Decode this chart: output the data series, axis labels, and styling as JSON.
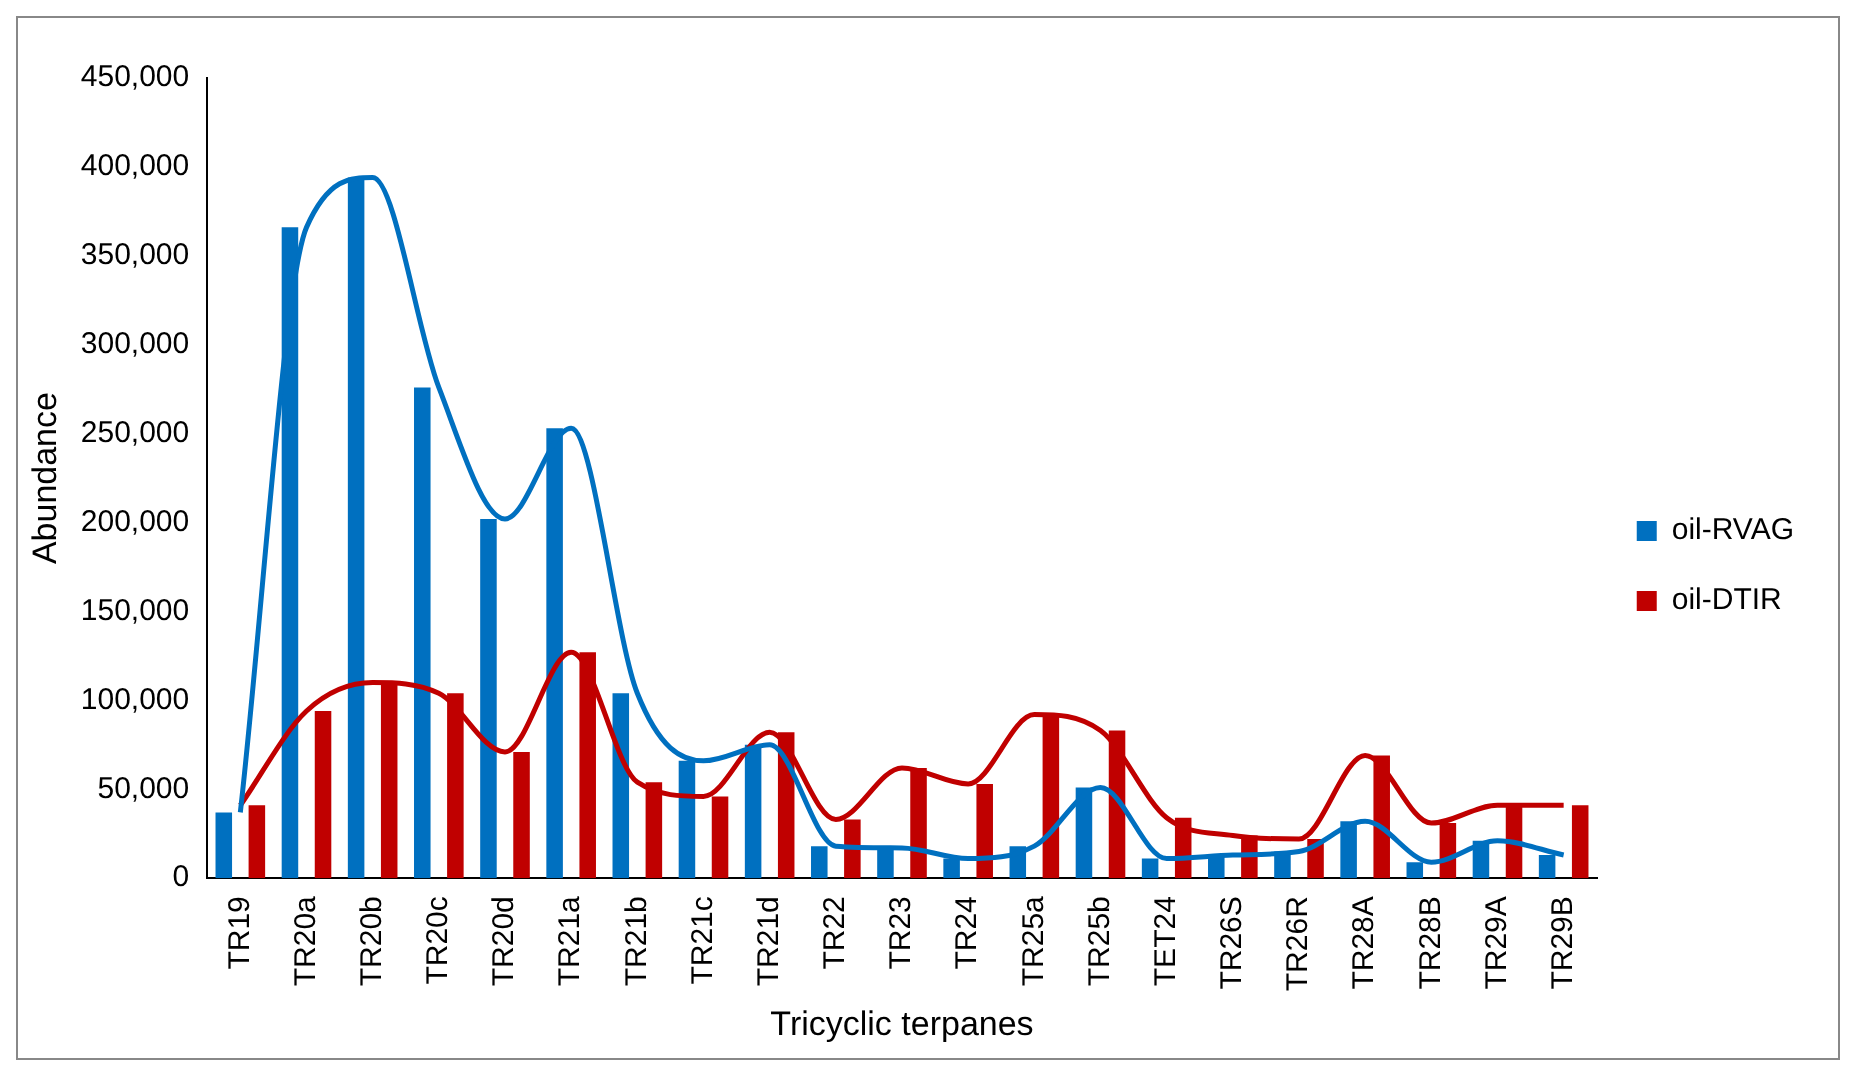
{
  "chart_data": {
    "type": "bar",
    "xlabel": "Tricyclic terpanes",
    "ylabel": "Abundance",
    "categories": [
      "TR19",
      "TR20a",
      "TR20b",
      "TR20c",
      "TR20d",
      "TR21a",
      "TR21b",
      "TR21c",
      "TR21d",
      "TR22",
      "TR23",
      "TR24",
      "TR25a",
      "TR25b",
      "TET24",
      "TR26S",
      "TR26R",
      "TR28A",
      "TR28B",
      "TR29A",
      "TR29B"
    ],
    "series": [
      {
        "name": "oil-RVAG",
        "color": "#0070c0",
        "values": [
          37000,
          366000,
          394000,
          276000,
          202000,
          253000,
          104000,
          66000,
          75000,
          18000,
          17000,
          11000,
          18000,
          51000,
          11000,
          13000,
          15000,
          32000,
          9000,
          21000,
          13000
        ]
      },
      {
        "name": "oil-DTIR",
        "color": "#c00000",
        "values": [
          41000,
          94000,
          110000,
          104000,
          71000,
          127000,
          54000,
          46000,
          82000,
          33000,
          62000,
          53000,
          92000,
          83000,
          34000,
          24000,
          22000,
          69000,
          31000,
          41000,
          41000
        ]
      },
      {
        "type": "line",
        "color": "#0070c0",
        "values": [
          37000,
          366000,
          394000,
          276000,
          202000,
          253000,
          104000,
          66000,
          75000,
          18000,
          17000,
          11000,
          18000,
          51000,
          11000,
          13000,
          15000,
          32000,
          9000,
          21000,
          13000
        ]
      },
      {
        "type": "line",
        "color": "#c00000",
        "values": [
          41000,
          94000,
          110000,
          104000,
          71000,
          127000,
          54000,
          46000,
          82000,
          33000,
          62000,
          53000,
          92000,
          83000,
          34000,
          24000,
          22000,
          69000,
          31000,
          41000,
          41000
        ]
      }
    ],
    "ylim": [
      0,
      450000
    ],
    "yticks": [
      0,
      {
        "value": 50000,
        "label": "50,000"
      },
      {
        "value": 100000,
        "label": "100,000"
      },
      {
        "value": 150000,
        "label": "150,000"
      },
      {
        "value": 200000,
        "label": "200,000"
      },
      {
        "value": 250000,
        "label": "250,000"
      },
      {
        "value": 300000,
        "label": "300,000"
      },
      {
        "value": 350000,
        "label": "350,000"
      },
      {
        "value": 400000,
        "label": "400,000"
      },
      {
        "value": 450000,
        "label": "450,000"
      }
    ],
    "legend": "right",
    "marker": "none"
  }
}
